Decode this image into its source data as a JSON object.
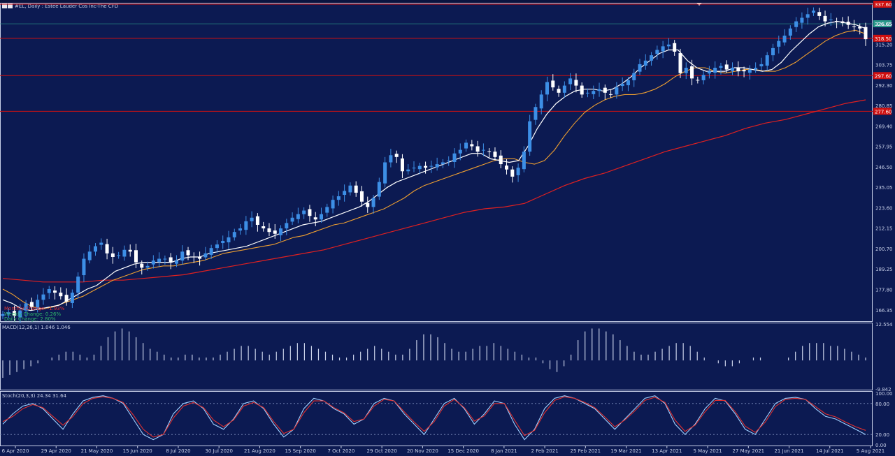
{
  "window": {
    "title": "#EL, Daily : Estee Lauder Cos Inc-The CFD"
  },
  "colors": {
    "background": "#0c1a52",
    "candle_up": "#3d8fe6",
    "candle_down": "#ffffff",
    "sma_fast": "#ffffff",
    "sma_mid": "#f0a030",
    "sma_slow": "#e02020",
    "level_line": "#d01010",
    "macd_hist": "#c8d0e8",
    "stoch_main": "#9fd0ff",
    "stoch_signal": "#e03030",
    "price_badge": "#2a9a8a"
  },
  "chart_data": [
    {
      "type": "line",
      "panel": "price",
      "title": "#EL, Daily : Estee Lauder Cos Inc-The CFD",
      "ylim": [
        160.0,
        338.0
      ],
      "y_ticks": [
        "326.65",
        "315.20",
        "303.75",
        "292.30",
        "280.85",
        "269.40",
        "257.95",
        "246.50",
        "235.05",
        "223.60",
        "212.15",
        "200.70",
        "189.25",
        "177.80",
        "166.35"
      ],
      "x_labels": [
        "6 Apr 2020",
        "29 Apr 2020",
        "21 May 2020",
        "15 Jun 2020",
        "8 Jul 2020",
        "30 Jul 2020",
        "21 Aug 2020",
        "15 Sep 2020",
        "7 Oct 2020",
        "29 Oct 2020",
        "20 Nov 2020",
        "15 Dec 2020",
        "8 Jan 2021",
        "2 Feb 2021",
        "25 Feb 2021",
        "19 Mar 2021",
        "13 Apr 2021",
        "5 May 2021",
        "27 May 2021",
        "21 Jun 2021",
        "14 Jul 2021",
        "5 Aug 2021"
      ],
      "close_series": [
        164,
        165,
        163,
        166,
        170,
        168,
        172,
        175,
        178,
        176,
        174,
        171,
        176,
        185,
        195,
        199,
        202,
        204,
        198,
        196,
        197,
        200,
        199,
        193,
        190,
        191,
        194,
        195,
        195,
        193,
        194,
        199,
        197,
        196,
        195,
        198,
        201,
        203,
        205,
        207,
        210,
        212,
        216,
        218,
        214,
        212,
        210,
        209,
        212,
        215,
        218,
        220,
        222,
        219,
        217,
        220,
        224,
        228,
        230,
        233,
        236,
        232,
        227,
        224,
        229,
        238,
        249,
        253,
        252,
        244,
        245,
        246,
        247,
        246,
        247,
        248,
        249,
        250,
        254,
        256,
        260,
        258,
        255,
        256,
        255,
        252,
        248,
        245,
        241,
        246,
        255,
        272,
        280,
        287,
        294,
        291,
        288,
        292,
        296,
        292,
        287,
        288,
        289,
        290,
        288,
        287,
        291,
        293,
        295,
        299,
        304,
        306,
        309,
        312,
        314,
        315,
        311,
        299,
        302,
        296,
        295,
        298,
        300,
        302,
        303,
        301,
        302,
        300,
        300,
        301,
        302,
        304,
        309,
        313,
        317,
        320,
        324,
        328,
        330,
        332,
        334,
        331,
        328,
        329,
        328,
        327,
        326,
        325,
        324,
        318
      ],
      "sma_fast": [
        172,
        170,
        167,
        166,
        167,
        168,
        169,
        172,
        175,
        178,
        180,
        184,
        188,
        190,
        192,
        193,
        193,
        193,
        193,
        195,
        196,
        196,
        198,
        199,
        200,
        201,
        202,
        204,
        206,
        208,
        210,
        212,
        214,
        215,
        216,
        218,
        220,
        222,
        224,
        227,
        231,
        235,
        238,
        240,
        242,
        244,
        246,
        248,
        250,
        252,
        254,
        254,
        251,
        250,
        249,
        250,
        258,
        268,
        276,
        282,
        286,
        289,
        290,
        290,
        289,
        290,
        293,
        297,
        302,
        306,
        310,
        312,
        312,
        306,
        302,
        300,
        300,
        300,
        302,
        302,
        301,
        300,
        301,
        305,
        311,
        316,
        321,
        325,
        327,
        328,
        327,
        326,
        324
      ],
      "sma_mid": [
        178,
        175,
        171,
        168,
        167,
        168,
        170,
        172,
        174,
        177,
        180,
        183,
        185,
        187,
        189,
        190,
        191,
        191,
        192,
        193,
        194,
        196,
        198,
        199,
        200,
        201,
        202,
        203,
        205,
        207,
        208,
        210,
        212,
        214,
        215,
        217,
        219,
        221,
        223,
        226,
        229,
        233,
        236,
        238,
        240,
        242,
        244,
        246,
        248,
        250,
        251,
        251,
        249,
        248,
        250,
        256,
        264,
        271,
        277,
        281,
        284,
        286,
        287,
        287,
        288,
        290,
        293,
        297,
        300,
        302,
        302,
        300,
        299,
        300,
        301,
        301,
        300,
        300,
        302,
        305,
        309,
        313,
        317,
        320,
        322,
        323,
        321
      ],
      "sma_slow": [
        184,
        183,
        182,
        182,
        182,
        183,
        183,
        184,
        185,
        186,
        188,
        190,
        192,
        194,
        196,
        198,
        200,
        203,
        206,
        209,
        212,
        215,
        218,
        221,
        223,
        224,
        226,
        231,
        236,
        240,
        243,
        247,
        251,
        255,
        258,
        261,
        264,
        268,
        271,
        273,
        276,
        279,
        282,
        284
      ],
      "levels": [
        {
          "price": 318.5,
          "label": "318.50"
        },
        {
          "price": 297.6,
          "label": "297.60"
        },
        {
          "price": 277.6,
          "label": "277.60"
        },
        {
          "price": 337.6,
          "label": "337.60"
        }
      ],
      "current_price_label": "326.65",
      "legend": [
        {
          "text": "Monthly Change: -1.93%",
          "color": "red"
        },
        {
          "text": "Weekly Change: 0.26%",
          "color": "green"
        },
        {
          "text": "Daily Change: 2.80%",
          "color": "green"
        }
      ]
    },
    {
      "type": "bar",
      "panel": "macd",
      "title": "MACD(12,26,1) 1.046 1.046",
      "ylim": [
        -9.842,
        12.554
      ],
      "y_ticks": [
        "12.554",
        "-9.842"
      ],
      "values": [
        -6,
        -5,
        -4,
        -3,
        -2,
        -1,
        0,
        1,
        2,
        3,
        3,
        2,
        1,
        2,
        5,
        8,
        10,
        11,
        10,
        8,
        6,
        4,
        3,
        2,
        1,
        1,
        2,
        2,
        1,
        1,
        1,
        2,
        3,
        4,
        5,
        5,
        4,
        3,
        2,
        3,
        4,
        5,
        6,
        6,
        5,
        4,
        3,
        2,
        1,
        1,
        2,
        3,
        4,
        5,
        4,
        3,
        2,
        2,
        4,
        7,
        9,
        9,
        8,
        6,
        4,
        3,
        3,
        4,
        5,
        5,
        6,
        5,
        4,
        3,
        2,
        1,
        1,
        -1,
        -3,
        -4,
        -2,
        2,
        7,
        10,
        11,
        11,
        10,
        9,
        7,
        5,
        3,
        2,
        2,
        3,
        4,
        5,
        6,
        6,
        5,
        3,
        1,
        0,
        -1,
        -2,
        -2,
        -1,
        0,
        1,
        1,
        0,
        0,
        0,
        1,
        3,
        5,
        6,
        6,
        6,
        5,
        5,
        4,
        3,
        2,
        1
      ]
    },
    {
      "type": "line",
      "panel": "stochastic",
      "title": "Stoch(20,3,3) 24.34 31.64",
      "ylim": [
        0,
        100
      ],
      "y_ticks": [
        "100.00",
        "80.00",
        "20.00",
        "0.00"
      ],
      "series": [
        {
          "name": "main",
          "values": [
            40,
            60,
            75,
            80,
            70,
            50,
            30,
            60,
            85,
            92,
            95,
            90,
            80,
            50,
            20,
            10,
            20,
            60,
            80,
            85,
            70,
            40,
            30,
            50,
            80,
            85,
            70,
            40,
            15,
            30,
            70,
            90,
            85,
            70,
            60,
            40,
            50,
            80,
            90,
            85,
            60,
            40,
            20,
            50,
            80,
            90,
            70,
            40,
            60,
            85,
            80,
            40,
            10,
            30,
            70,
            90,
            95,
            90,
            80,
            70,
            50,
            30,
            50,
            70,
            90,
            95,
            80,
            40,
            20,
            40,
            70,
            90,
            85,
            60,
            30,
            20,
            50,
            80,
            90,
            92,
            88,
            70,
            55,
            50,
            40,
            30,
            20
          ]
        },
        {
          "name": "signal",
          "values": [
            45,
            55,
            70,
            78,
            72,
            55,
            38,
            55,
            80,
            90,
            93,
            90,
            82,
            58,
            30,
            15,
            20,
            52,
            75,
            82,
            72,
            48,
            35,
            48,
            75,
            82,
            72,
            45,
            22,
            30,
            62,
            85,
            85,
            72,
            62,
            45,
            50,
            75,
            88,
            85,
            64,
            44,
            26,
            45,
            75,
            88,
            72,
            46,
            56,
            80,
            80,
            48,
            18,
            28,
            62,
            86,
            93,
            90,
            82,
            72,
            54,
            35,
            48,
            66,
            86,
            92,
            82,
            48,
            26,
            38,
            64,
            86,
            86,
            64,
            36,
            24,
            44,
            74,
            88,
            90,
            88,
            74,
            60,
            54,
            44,
            35,
            28
          ]
        }
      ]
    }
  ]
}
